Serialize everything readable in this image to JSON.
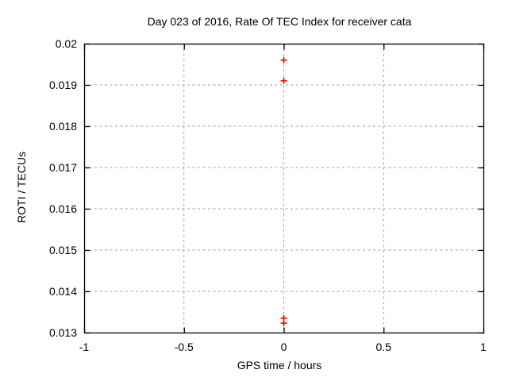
{
  "chart_data": {
    "type": "scatter",
    "title": "Day 023 of 2016, Rate Of TEC Index for receiver cata",
    "xlabel": "GPS time / hours",
    "ylabel": "ROTI / TECUs",
    "xlim": [
      -1,
      1
    ],
    "ylim": [
      0.013,
      0.02
    ],
    "xticks": [
      -1,
      -0.5,
      0,
      0.5,
      1
    ],
    "xtick_labels": [
      "-1",
      "-0.5",
      "0",
      "0.5",
      "1"
    ],
    "yticks": [
      0.013,
      0.014,
      0.015,
      0.016,
      0.017,
      0.018,
      0.019,
      0.02
    ],
    "ytick_labels": [
      "0.013",
      "0.014",
      "0.015",
      "0.016",
      "0.017",
      "0.018",
      "0.019",
      "0.02"
    ],
    "grid": true,
    "legend": "none",
    "series": [
      {
        "marker": "plus",
        "color": "#ff0000",
        "points": [
          [
            0,
            0.0196
          ],
          [
            0,
            0.0191
          ],
          [
            0,
            0.01335
          ],
          [
            0,
            0.01323
          ]
        ]
      }
    ],
    "colors": {
      "background": "#ffffff",
      "border": "#000000",
      "grid": "#a0a0a0",
      "text": "#000000",
      "marker": "#ff0000"
    }
  }
}
